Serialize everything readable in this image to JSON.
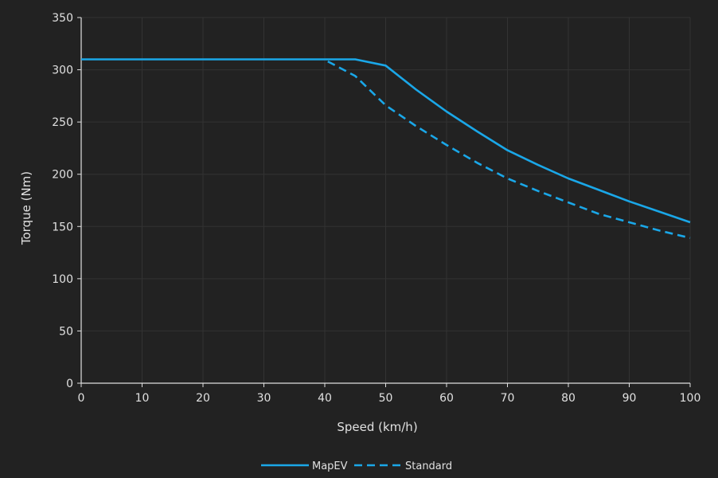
{
  "chart_data": {
    "type": "line",
    "title": "",
    "xlabel": "Speed (km/h)",
    "ylabel": "Torque (Nm)",
    "xlim": [
      0,
      100
    ],
    "ylim": [
      0,
      350
    ],
    "xticks": [
      0,
      10,
      20,
      30,
      40,
      50,
      60,
      70,
      80,
      90,
      100
    ],
    "yticks": [
      0,
      50,
      100,
      150,
      200,
      250,
      300,
      350
    ],
    "grid": true,
    "legend_position": "bottom-center",
    "colors": {
      "background": "#222222",
      "grid": "#333333",
      "axis": "#e0e0e0",
      "text": "#e0e0e0",
      "line": "#1aa7e8"
    },
    "series": [
      {
        "name": "MapEV",
        "style": "solid",
        "x": [
          0,
          10,
          20,
          30,
          40,
          45,
          50,
          55,
          60,
          65,
          70,
          75,
          80,
          85,
          90,
          95,
          100
        ],
        "y": [
          310,
          310,
          310,
          310,
          310,
          310,
          304,
          281,
          260,
          241,
          223,
          209,
          196,
          185,
          174,
          164,
          154
        ]
      },
      {
        "name": "Standard",
        "style": "dashed",
        "x": [
          40.5,
          45,
          50,
          55,
          60,
          65,
          70,
          75,
          80,
          85,
          90,
          95,
          100
        ],
        "y": [
          308,
          294,
          266,
          246,
          228,
          211,
          196,
          184,
          173,
          162,
          154,
          146,
          139
        ]
      }
    ]
  }
}
